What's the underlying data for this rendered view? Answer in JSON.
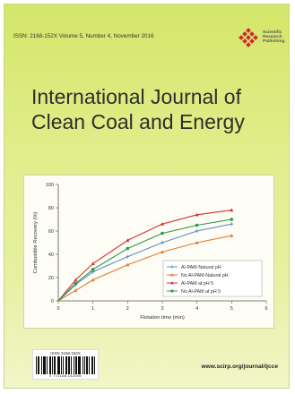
{
  "cover": {
    "issn_line": "ISSN: 2168-152X   Volume 5, Number 4, November 2016",
    "publisher": {
      "line1": "Scientific",
      "line2": "Research",
      "line3": "Publishing",
      "logo_icon": "diamond-grid-logo",
      "logo_color": "#d22630"
    },
    "title_line1": "International Journal of",
    "title_line2": "Clean Coal and Energy",
    "barcode": {
      "issn_text": "ISSN 2168-152X",
      "number_text": "9 772168 152005"
    },
    "url": "www.scirp.org/journal/ijcce",
    "background_color": "#dde98a"
  },
  "chart_data": {
    "type": "line",
    "title": "",
    "xlabel": "Flotation time (min)",
    "ylabel": "Combustible Recovery (%)",
    "xlim": [
      0,
      6
    ],
    "ylim": [
      0,
      100
    ],
    "xticks": [
      0,
      1,
      2,
      3,
      4,
      5,
      6
    ],
    "yticks": [
      0,
      20,
      40,
      60,
      80,
      100
    ],
    "x": [
      0,
      0.5,
      1,
      2,
      3,
      4,
      5
    ],
    "legend_position": "lower-right",
    "series": [
      {
        "name": "Al-PAM-Natural pH",
        "values": [
          0,
          14,
          25,
          38,
          50,
          60,
          66
        ],
        "color": "#5a8fc8",
        "marker": "plus"
      },
      {
        "name": "No Al-PAM-Natural pH",
        "values": [
          0,
          9,
          18,
          31,
          42,
          50,
          56
        ],
        "color": "#e07a32",
        "marker": "triangle"
      },
      {
        "name": "Al-PAM at pH 5",
        "values": [
          0,
          18,
          32,
          52,
          66,
          74,
          78
        ],
        "color": "#d93030",
        "marker": "triangle"
      },
      {
        "name": "No Al-PAM at pH 5",
        "values": [
          0,
          15,
          27,
          45,
          58,
          65,
          70
        ],
        "color": "#2a9a4a",
        "marker": "circle"
      }
    ]
  }
}
